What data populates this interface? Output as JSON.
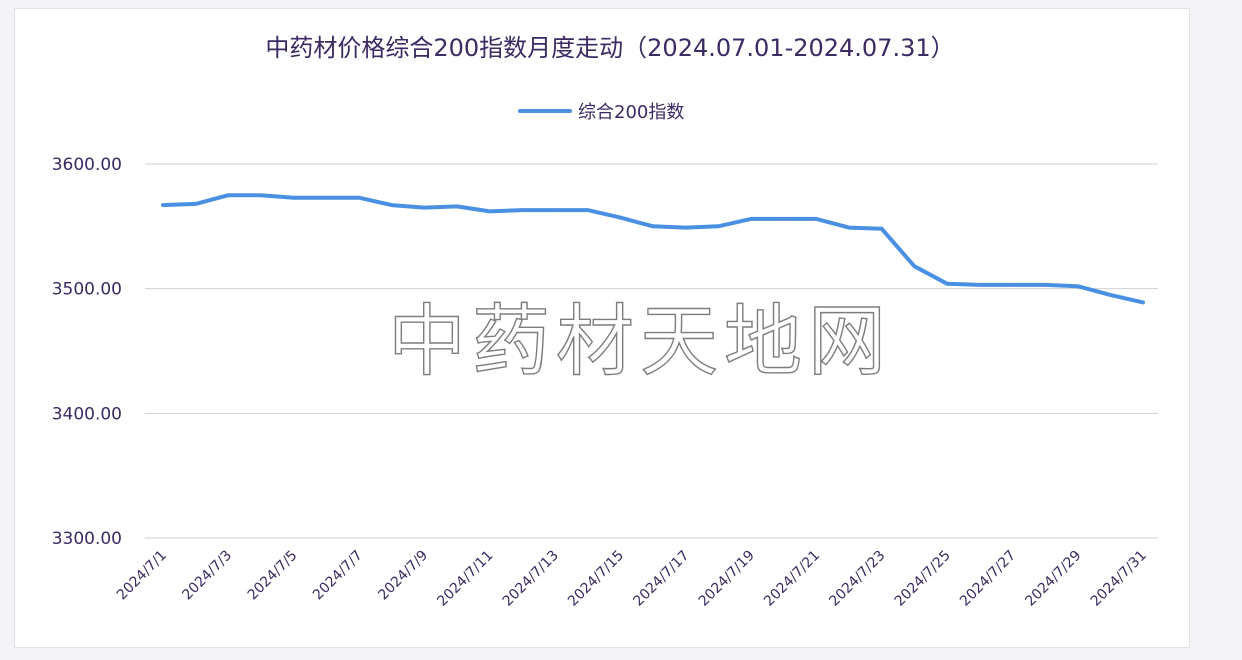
{
  "chart_data": {
    "type": "line",
    "title": "中药材价格综合200指数月度走动（2024.07.01-2024.07.31）",
    "xlabel": "",
    "ylabel": "",
    "ylim": [
      3300,
      3600
    ],
    "yticks": [
      "3600.00",
      "3500.00",
      "3400.00",
      "3300.00"
    ],
    "ytick_values": [
      3600,
      3500,
      3400,
      3300
    ],
    "grid": true,
    "legend_position": "top",
    "categories": [
      "2024/7/1",
      "2024/7/2",
      "2024/7/3",
      "2024/7/4",
      "2024/7/5",
      "2024/7/6",
      "2024/7/7",
      "2024/7/8",
      "2024/7/9",
      "2024/7/10",
      "2024/7/11",
      "2024/7/12",
      "2024/7/13",
      "2024/7/14",
      "2024/7/15",
      "2024/7/16",
      "2024/7/17",
      "2024/7/18",
      "2024/7/19",
      "2024/7/20",
      "2024/7/21",
      "2024/7/22",
      "2024/7/23",
      "2024/7/24",
      "2024/7/25",
      "2024/7/26",
      "2024/7/27",
      "2024/7/28",
      "2024/7/29",
      "2024/7/30",
      "2024/7/31"
    ],
    "xtick_labels": [
      "2024/7/1",
      "2024/7/3",
      "2024/7/5",
      "2024/7/7",
      "2024/7/9",
      "2024/7/11",
      "2024/7/13",
      "2024/7/15",
      "2024/7/17",
      "2024/7/19",
      "2024/7/21",
      "2024/7/23",
      "2024/7/25",
      "2024/7/27",
      "2024/7/29",
      "2024/7/31"
    ],
    "series": [
      {
        "name": "综合200指数",
        "color": "#4a90e2",
        "values": [
          3567,
          3568,
          3575,
          3575,
          3573,
          3573,
          3573,
          3567,
          3565,
          3566,
          3562,
          3563,
          3563,
          3563,
          3557,
          3550,
          3549,
          3550,
          3556,
          3556,
          3556,
          3549,
          3548,
          3518,
          3504,
          3503,
          3503,
          3503,
          3502,
          3495,
          3489
        ]
      }
    ]
  },
  "watermark": {
    "text": "中药材天地网"
  }
}
